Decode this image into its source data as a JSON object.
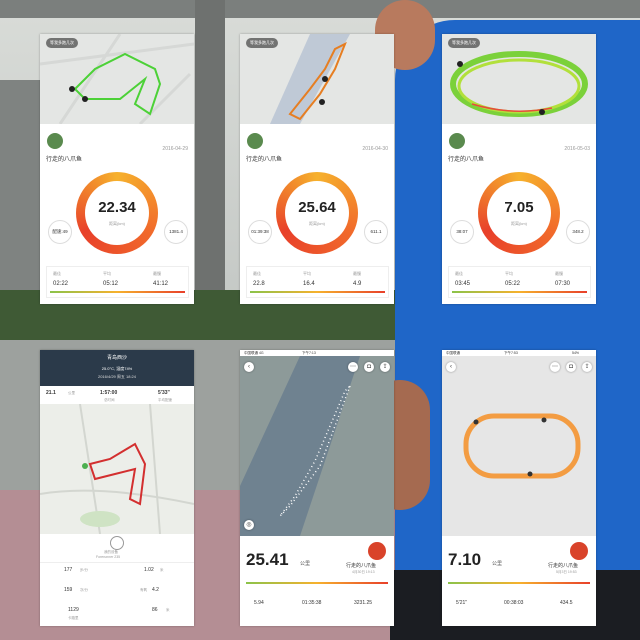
{
  "cards": [
    {
      "badge": "等我多跑几次",
      "username": "行走的八爪鱼",
      "date": "2016-04-29",
      "distance": "22.34",
      "unit": "距离(km)",
      "left_value": "配速:49",
      "right_value": "1381.4",
      "stats": [
        {
          "label": "最佳",
          "value": "02:22"
        },
        {
          "label": "平均",
          "value": "05:12"
        },
        {
          "label": "最慢",
          "value": "41:12"
        }
      ]
    },
    {
      "badge": "等我多跑几次",
      "username": "行走的八爪鱼",
      "date": "2016-04-30",
      "distance": "25.64",
      "unit": "距离(km)",
      "left_value": "01:39:38",
      "right_value": "611.1",
      "stats": [
        {
          "label": "最佳",
          "value": "22.8"
        },
        {
          "label": "平均",
          "value": "16.4"
        },
        {
          "label": "最慢",
          "value": "4.9"
        }
      ]
    },
    {
      "badge": "等我多跑几次",
      "username": "行走的八爪鱼",
      "date": "2016-05-03",
      "distance": "7.05",
      "unit": "距离(km)",
      "left_value": "38:07",
      "right_value": "348.2",
      "stats": [
        {
          "label": "最佳",
          "value": "03:45"
        },
        {
          "label": "平均",
          "value": "05:22"
        },
        {
          "label": "最慢",
          "value": "07:30"
        }
      ]
    }
  ],
  "garmin": {
    "title": "青岛西沙",
    "weather": "25.0°C, 湿度74%",
    "datetime": "2016/4/29 周五 18:24",
    "distance": "21.1",
    "distance_unit": "公里",
    "time": "1:57:00",
    "time_label": "总时间",
    "pace": "5'33\"",
    "pace_label": "平均配速",
    "device": "Forerunner 235",
    "device_label": "我的设备",
    "stats": [
      {
        "value": "177",
        "label": "步/分"
      },
      {
        "value": "1.02",
        "label": "米"
      },
      {
        "value": "159",
        "label": "次/分"
      },
      {
        "value": "4.2",
        "label": "有氧"
      },
      {
        "value": "1129",
        "label": "卡路里"
      },
      {
        "value": "86",
        "label": "米"
      }
    ]
  },
  "app1": {
    "carrier": "中国联通 4G",
    "time": "下午7:13",
    "distance": "25.41",
    "unit": "公里",
    "user": "行走的八爪鱼",
    "date": "4月30日 19:13",
    "values": [
      "5.94",
      "01:35:38",
      "3231.25"
    ]
  },
  "app2": {
    "carrier": "中国联通",
    "time": "下午7:53",
    "battery": "54%",
    "distance": "7.10",
    "unit": "公里",
    "user": "行走的八爪鱼",
    "date": "5月3日 19:53",
    "values": [
      "5'21\"",
      "00:38:03",
      "434.5"
    ]
  }
}
